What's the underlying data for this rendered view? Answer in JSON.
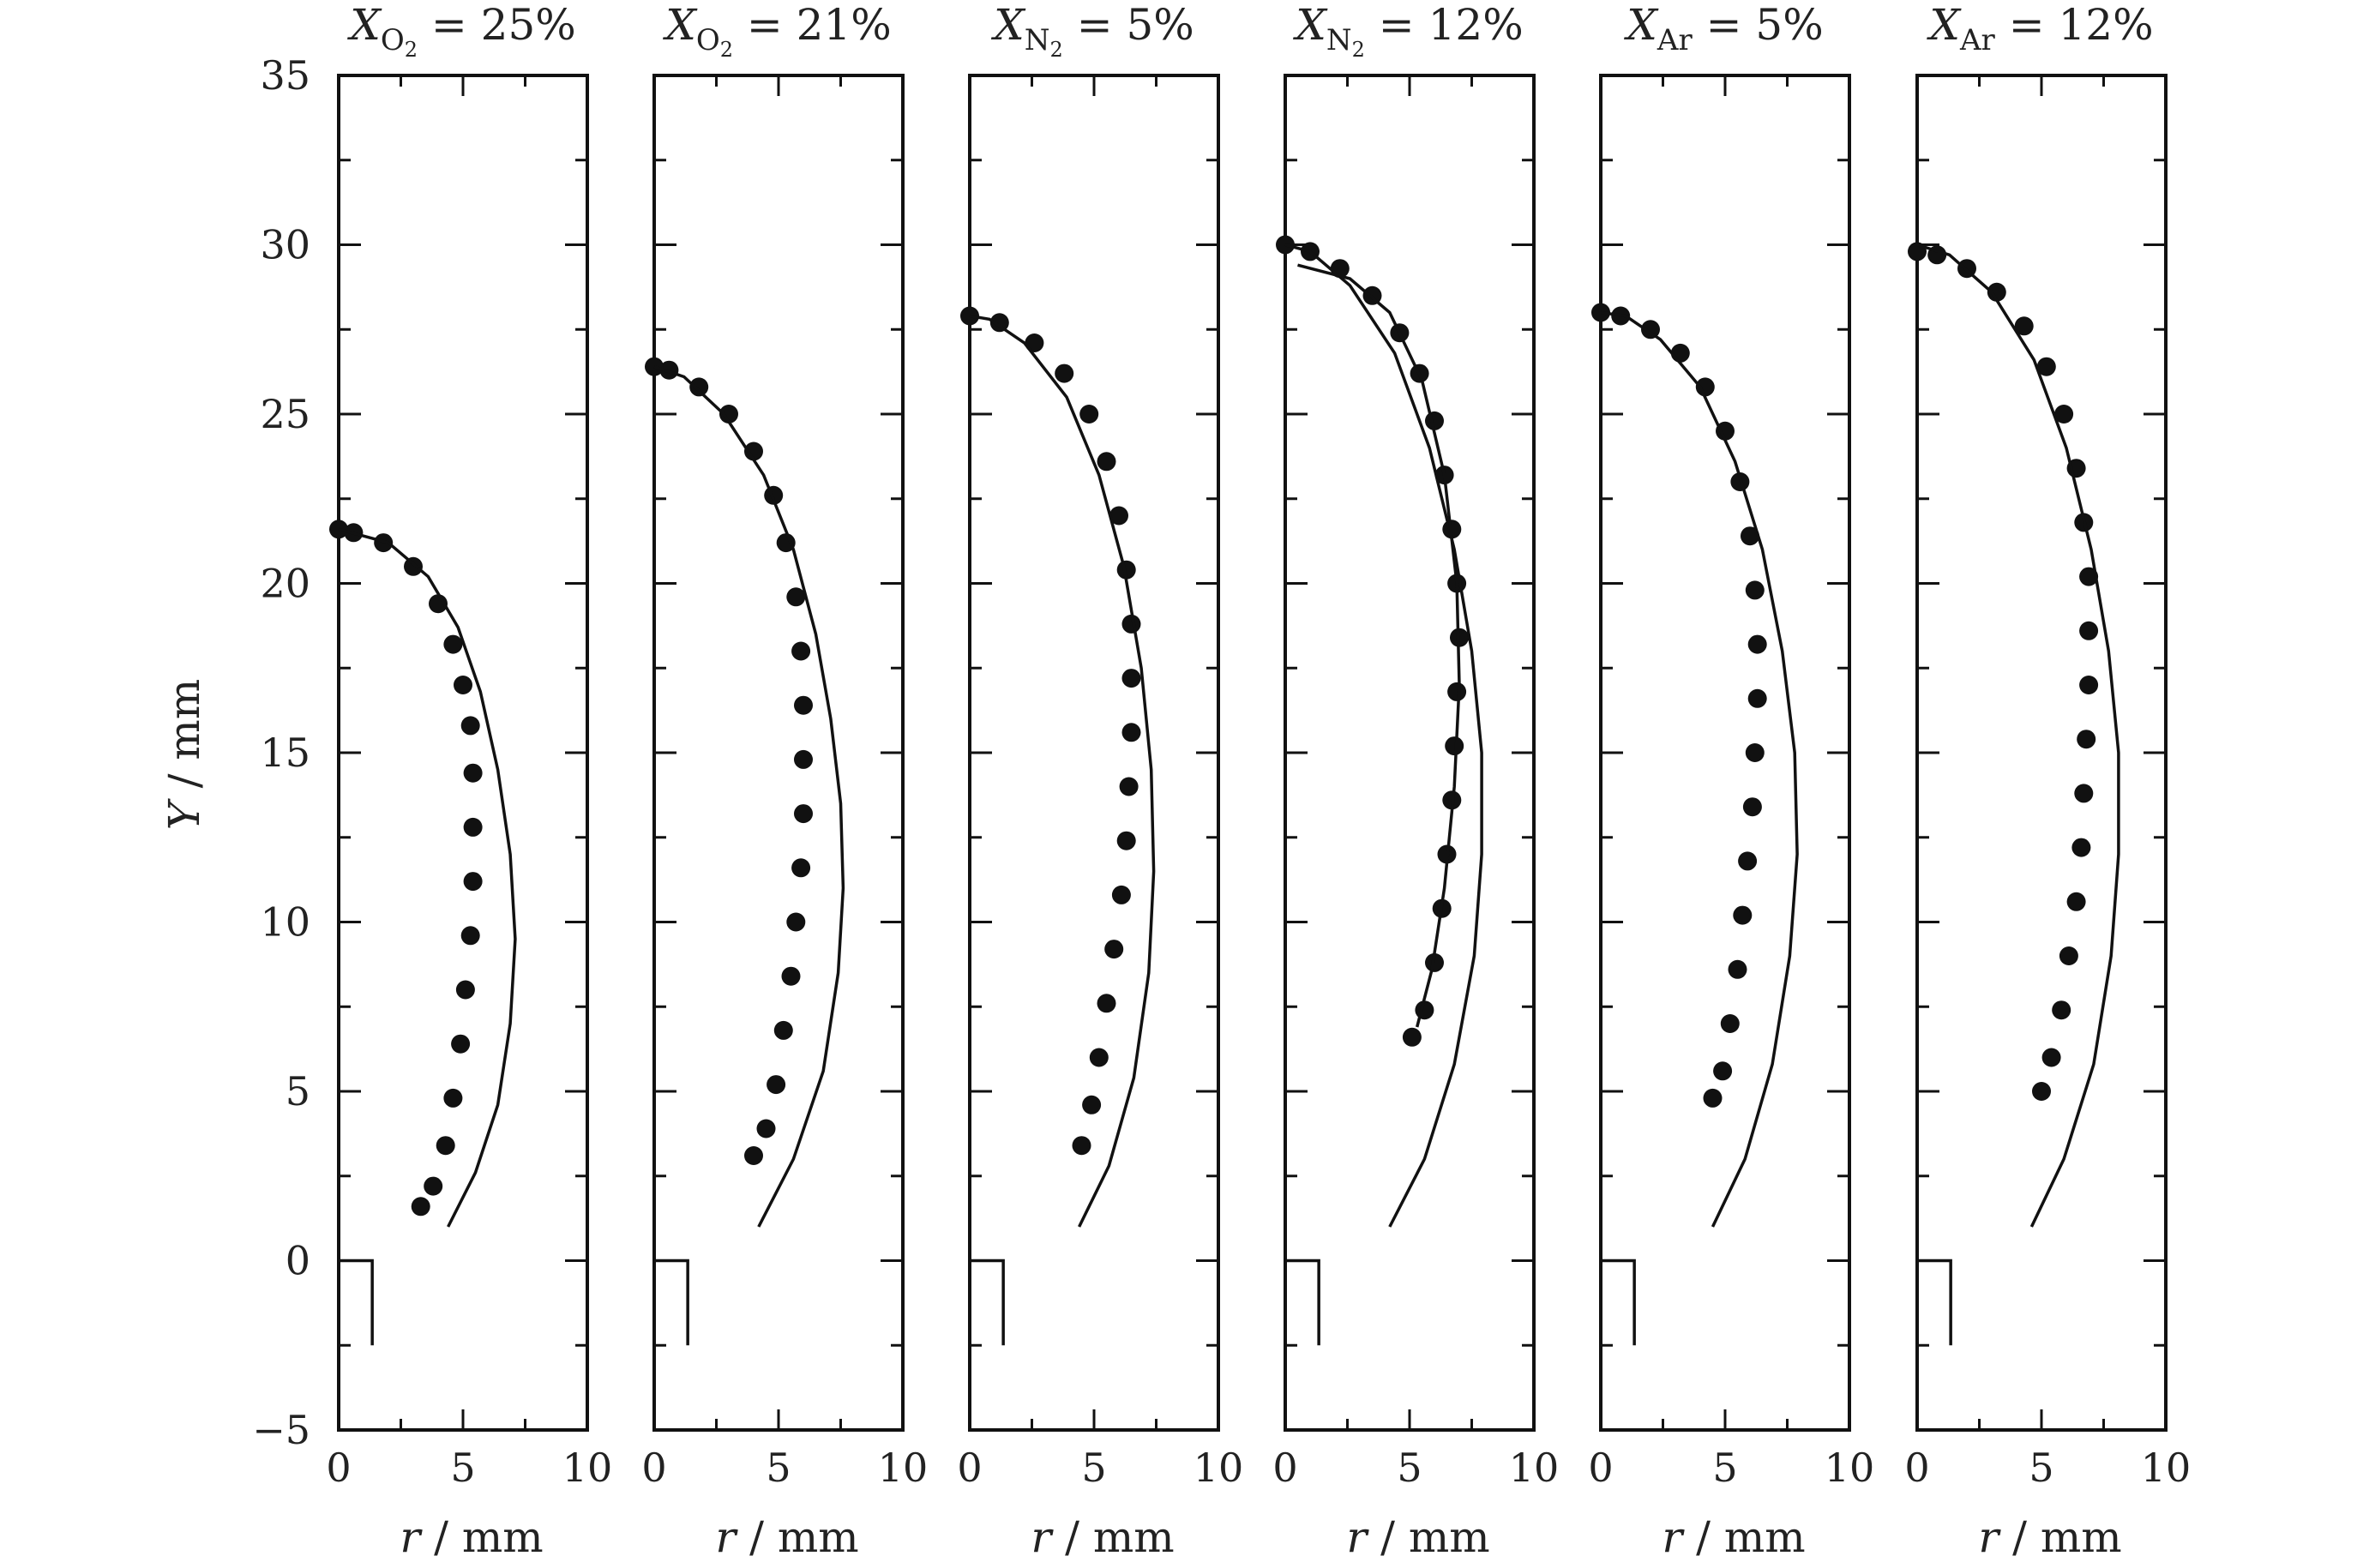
{
  "chart_data": {
    "type": "scatter",
    "y_axis_label": "Y / mm",
    "x_axis_label": "r / mm",
    "ylim": [
      -5,
      35
    ],
    "xlim": [
      0,
      10
    ],
    "y_ticks": [
      "35",
      "30",
      "25",
      "20",
      "15",
      "10",
      "5",
      "0",
      "−5"
    ],
    "x_ticks": [
      "0",
      "5",
      "10"
    ],
    "grid": false,
    "panels": [
      {
        "title": {
          "symbol": "X",
          "sub": "O",
          "sub2": "2",
          "rest": "= 25%"
        },
        "series": [
          {
            "style": "points",
            "points": [
              [
                3.3,
                1.6
              ],
              [
                3.8,
                2.2
              ],
              [
                4.3,
                3.4
              ],
              [
                4.6,
                4.8
              ],
              [
                4.9,
                6.4
              ],
              [
                5.1,
                8.0
              ],
              [
                5.3,
                9.6
              ],
              [
                5.4,
                11.2
              ],
              [
                5.4,
                12.8
              ],
              [
                5.4,
                14.4
              ],
              [
                5.3,
                15.8
              ],
              [
                5.0,
                17.0
              ],
              [
                4.6,
                18.2
              ],
              [
                4.0,
                19.4
              ],
              [
                3.0,
                20.5
              ],
              [
                1.8,
                21.2
              ],
              [
                0.6,
                21.5
              ],
              [
                0.0,
                21.6
              ]
            ]
          },
          {
            "style": "line",
            "points": [
              [
                4.4,
                1.0
              ],
              [
                5.5,
                2.6
              ],
              [
                6.4,
                4.6
              ],
              [
                6.9,
                7.0
              ],
              [
                7.1,
                9.5
              ],
              [
                6.9,
                12.0
              ],
              [
                6.4,
                14.5
              ],
              [
                5.7,
                16.8
              ],
              [
                4.8,
                18.7
              ],
              [
                3.6,
                20.2
              ],
              [
                2.0,
                21.2
              ],
              [
                0.0,
                21.6
              ]
            ]
          }
        ]
      },
      {
        "title": {
          "symbol": "X",
          "sub": "O",
          "sub2": "2",
          "rest": "= 21%"
        },
        "series": [
          {
            "style": "points",
            "points": [
              [
                4.0,
                3.1
              ],
              [
                4.5,
                3.9
              ],
              [
                4.9,
                5.2
              ],
              [
                5.2,
                6.8
              ],
              [
                5.5,
                8.4
              ],
              [
                5.7,
                10.0
              ],
              [
                5.9,
                11.6
              ],
              [
                6.0,
                13.2
              ],
              [
                6.0,
                14.8
              ],
              [
                6.0,
                16.4
              ],
              [
                5.9,
                18.0
              ],
              [
                5.7,
                19.6
              ],
              [
                5.3,
                21.2
              ],
              [
                4.8,
                22.6
              ],
              [
                4.0,
                23.9
              ],
              [
                3.0,
                25.0
              ],
              [
                1.8,
                25.8
              ],
              [
                0.6,
                26.3
              ],
              [
                0.0,
                26.4
              ]
            ]
          },
          {
            "style": "line",
            "points": [
              [
                4.2,
                1.0
              ],
              [
                5.6,
                3.0
              ],
              [
                6.8,
                5.6
              ],
              [
                7.4,
                8.5
              ],
              [
                7.6,
                11.0
              ],
              [
                7.5,
                13.5
              ],
              [
                7.1,
                16.0
              ],
              [
                6.5,
                18.5
              ],
              [
                5.6,
                21.0
              ],
              [
                4.4,
                23.2
              ],
              [
                2.8,
                25.0
              ],
              [
                1.2,
                26.1
              ],
              [
                0.0,
                26.4
              ]
            ]
          }
        ]
      },
      {
        "title": {
          "symbol": "X",
          "sub": "N",
          "sub2": "2",
          "rest": "= 5%"
        },
        "series": [
          {
            "style": "points",
            "points": [
              [
                4.5,
                3.4
              ],
              [
                4.9,
                4.6
              ],
              [
                5.2,
                6.0
              ],
              [
                5.5,
                7.6
              ],
              [
                5.8,
                9.2
              ],
              [
                6.1,
                10.8
              ],
              [
                6.3,
                12.4
              ],
              [
                6.4,
                14.0
              ],
              [
                6.5,
                15.6
              ],
              [
                6.5,
                17.2
              ],
              [
                6.5,
                18.8
              ],
              [
                6.3,
                20.4
              ],
              [
                6.0,
                22.0
              ],
              [
                5.5,
                23.6
              ],
              [
                4.8,
                25.0
              ],
              [
                3.8,
                26.2
              ],
              [
                2.6,
                27.1
              ],
              [
                1.2,
                27.7
              ],
              [
                0.0,
                27.9
              ]
            ]
          },
          {
            "style": "line",
            "points": [
              [
                4.4,
                1.0
              ],
              [
                5.6,
                2.8
              ],
              [
                6.6,
                5.4
              ],
              [
                7.2,
                8.5
              ],
              [
                7.4,
                11.5
              ],
              [
                7.3,
                14.5
              ],
              [
                6.9,
                17.5
              ],
              [
                6.2,
                20.5
              ],
              [
                5.2,
                23.2
              ],
              [
                3.9,
                25.5
              ],
              [
                2.2,
                27.1
              ],
              [
                0.8,
                27.8
              ],
              [
                0.0,
                27.9
              ]
            ]
          }
        ]
      },
      {
        "title": {
          "symbol": "X",
          "sub": "N",
          "sub2": "2",
          "rest": "= 12%"
        },
        "series": [
          {
            "style": "points",
            "points": [
              [
                5.1,
                6.6
              ],
              [
                5.6,
                7.4
              ],
              [
                6.0,
                8.8
              ],
              [
                6.3,
                10.4
              ],
              [
                6.5,
                12.0
              ],
              [
                6.7,
                13.6
              ],
              [
                6.8,
                15.2
              ],
              [
                6.9,
                16.8
              ],
              [
                7.0,
                18.4
              ],
              [
                6.9,
                20.0
              ],
              [
                6.7,
                21.6
              ],
              [
                6.4,
                23.2
              ],
              [
                6.0,
                24.8
              ],
              [
                5.4,
                26.2
              ],
              [
                4.6,
                27.4
              ],
              [
                3.5,
                28.5
              ],
              [
                2.2,
                29.3
              ],
              [
                1.0,
                29.8
              ],
              [
                0.0,
                30.0
              ]
            ]
          },
          {
            "style": "line",
            "points": [
              [
                4.2,
                1.0
              ],
              [
                5.6,
                3.0
              ],
              [
                6.8,
                5.8
              ],
              [
                7.6,
                9.0
              ],
              [
                7.9,
                12.0
              ],
              [
                7.9,
                15.0
              ],
              [
                7.5,
                18.0
              ],
              [
                6.8,
                21.0
              ],
              [
                5.8,
                24.0
              ],
              [
                4.4,
                26.8
              ],
              [
                2.6,
                28.8
              ],
              [
                1.0,
                29.8
              ],
              [
                0.0,
                30.0
              ]
            ]
          },
          {
            "style": "line",
            "points": [
              [
                5.3,
                6.9
              ],
              [
                5.9,
                8.6
              ],
              [
                6.4,
                11.0
              ],
              [
                6.8,
                14.0
              ],
              [
                7.0,
                17.0
              ],
              [
                6.9,
                20.0
              ],
              [
                6.4,
                23.2
              ],
              [
                5.5,
                26.0
              ],
              [
                4.2,
                28.0
              ],
              [
                2.6,
                29.0
              ],
              [
                0.5,
                29.4
              ]
            ]
          }
        ]
      },
      {
        "title": {
          "symbol": "X",
          "sub": "Ar",
          "sub2": "",
          "rest": "= 5%"
        },
        "series": [
          {
            "style": "points",
            "points": [
              [
                4.5,
                4.8
              ],
              [
                4.9,
                5.6
              ],
              [
                5.2,
                7.0
              ],
              [
                5.5,
                8.6
              ],
              [
                5.7,
                10.2
              ],
              [
                5.9,
                11.8
              ],
              [
                6.1,
                13.4
              ],
              [
                6.2,
                15.0
              ],
              [
                6.3,
                16.6
              ],
              [
                6.3,
                18.2
              ],
              [
                6.2,
                19.8
              ],
              [
                6.0,
                21.4
              ],
              [
                5.6,
                23.0
              ],
              [
                5.0,
                24.5
              ],
              [
                4.2,
                25.8
              ],
              [
                3.2,
                26.8
              ],
              [
                2.0,
                27.5
              ],
              [
                0.8,
                27.9
              ],
              [
                0.0,
                28.0
              ]
            ]
          },
          {
            "style": "line",
            "points": [
              [
                4.5,
                1.0
              ],
              [
                5.8,
                3.0
              ],
              [
                6.9,
                5.8
              ],
              [
                7.6,
                9.0
              ],
              [
                7.9,
                12.0
              ],
              [
                7.8,
                15.0
              ],
              [
                7.3,
                18.0
              ],
              [
                6.5,
                21.0
              ],
              [
                5.4,
                23.6
              ],
              [
                4.0,
                25.8
              ],
              [
                2.4,
                27.2
              ],
              [
                1.0,
                27.9
              ],
              [
                0.0,
                28.0
              ]
            ]
          }
        ]
      },
      {
        "title": {
          "symbol": "X",
          "sub": "Ar",
          "sub2": "",
          "rest": "= 12%"
        },
        "series": [
          {
            "style": "points",
            "points": [
              [
                5.0,
                5.0
              ],
              [
                5.4,
                6.0
              ],
              [
                5.8,
                7.4
              ],
              [
                6.1,
                9.0
              ],
              [
                6.4,
                10.6
              ],
              [
                6.6,
                12.2
              ],
              [
                6.7,
                13.8
              ],
              [
                6.8,
                15.4
              ],
              [
                6.9,
                17.0
              ],
              [
                6.9,
                18.6
              ],
              [
                6.9,
                20.2
              ],
              [
                6.7,
                21.8
              ],
              [
                6.4,
                23.4
              ],
              [
                5.9,
                25.0
              ],
              [
                5.2,
                26.4
              ],
              [
                4.3,
                27.6
              ],
              [
                3.2,
                28.6
              ],
              [
                2.0,
                29.3
              ],
              [
                0.8,
                29.7
              ],
              [
                0.0,
                29.8
              ]
            ]
          },
          {
            "style": "line",
            "points": [
              [
                4.6,
                1.0
              ],
              [
                5.9,
                3.0
              ],
              [
                7.1,
                5.8
              ],
              [
                7.8,
                9.0
              ],
              [
                8.1,
                12.0
              ],
              [
                8.1,
                15.0
              ],
              [
                7.7,
                18.0
              ],
              [
                7.0,
                21.0
              ],
              [
                6.0,
                24.0
              ],
              [
                4.7,
                26.6
              ],
              [
                3.0,
                28.6
              ],
              [
                1.3,
                29.7
              ],
              [
                0.0,
                30.0
              ]
            ]
          }
        ]
      }
    ]
  }
}
